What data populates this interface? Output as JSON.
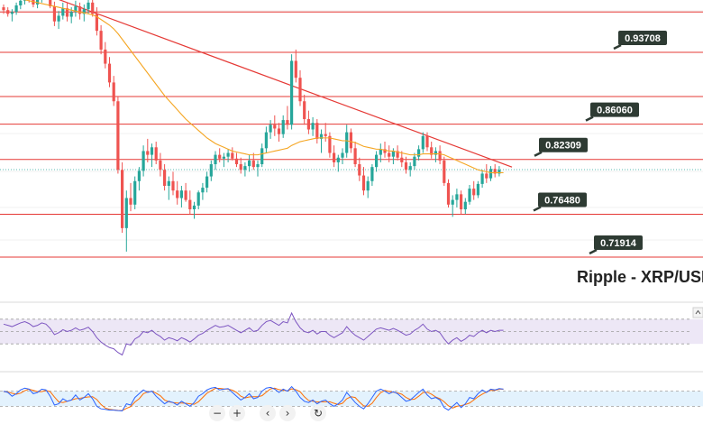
{
  "chart_data": {
    "type": "candlestick",
    "title": "Ripple - XRP/USD",
    "colors": {
      "up": "#26a69a",
      "down": "#ef5350",
      "level_line": "#e53935",
      "trend_line": "#e53935",
      "ma_line": "#f5a623",
      "rsi_line": "#7e57c2",
      "rsi_band": "#ede7f6",
      "stoch_k": "#2962ff",
      "stoch_d": "#ff6d00",
      "stoch_band": "#e3f2fd",
      "label_bg": "#2e3b33",
      "label_text": "#ffffff"
    },
    "levels": [
      {
        "value": 0.93708,
        "label": "0.93708"
      },
      {
        "value": 0.8606,
        "label": "0.86060"
      },
      {
        "value": 0.82309,
        "label": "0.82309"
      },
      {
        "value": 0.7648,
        "label": "0.76480"
      },
      {
        "value": 0.71914,
        "label": "0.71914"
      }
    ],
    "unlabeled_levels": [
      0.98,
      0.89
    ],
    "trendline": {
      "from": {
        "bar": 9,
        "price": 1.0
      },
      "to": {
        "bar": 120,
        "price": 0.815
      }
    },
    "ohlc": [
      [
        0.985,
        0.988,
        0.978,
        0.982
      ],
      [
        0.982,
        0.985,
        0.975,
        0.978
      ],
      [
        0.978,
        0.983,
        0.97,
        0.98
      ],
      [
        0.98,
        0.99,
        0.977,
        0.987
      ],
      [
        0.987,
        0.995,
        0.983,
        0.992
      ],
      [
        0.992,
        1.0,
        0.988,
        0.997
      ],
      [
        0.997,
        1.002,
        0.99,
        0.994
      ],
      [
        0.994,
        0.999,
        0.985,
        0.988
      ],
      [
        0.988,
        0.996,
        0.984,
        0.993
      ],
      [
        0.993,
        1.0,
        0.99,
        0.998
      ],
      [
        0.998,
        1.004,
        0.993,
        0.997
      ],
      [
        0.997,
        1.001,
        0.984,
        0.986
      ],
      [
        0.986,
        0.991,
        0.965,
        0.97
      ],
      [
        0.97,
        0.981,
        0.962,
        0.976
      ],
      [
        0.976,
        0.99,
        0.972,
        0.984
      ],
      [
        0.984,
        0.99,
        0.97,
        0.975
      ],
      [
        0.975,
        0.985,
        0.968,
        0.98
      ],
      [
        0.98,
        0.992,
        0.975,
        0.986
      ],
      [
        0.986,
        0.99,
        0.972,
        0.978
      ],
      [
        0.978,
        0.988,
        0.97,
        0.983
      ],
      [
        0.983,
        0.994,
        0.978,
        0.99
      ],
      [
        0.99,
        0.993,
        0.975,
        0.978
      ],
      [
        0.978,
        0.985,
        0.955,
        0.96
      ],
      [
        0.96,
        0.966,
        0.935,
        0.94
      ],
      [
        0.94,
        0.948,
        0.92,
        0.925
      ],
      [
        0.925,
        0.932,
        0.9,
        0.905
      ],
      [
        0.905,
        0.912,
        0.88,
        0.885
      ],
      [
        0.885,
        0.89,
        0.808,
        0.812
      ],
      [
        0.812,
        0.82,
        0.745,
        0.75
      ],
      [
        0.75,
        0.79,
        0.725,
        0.782
      ],
      [
        0.782,
        0.798,
        0.768,
        0.775
      ],
      [
        0.775,
        0.805,
        0.77,
        0.8
      ],
      [
        0.8,
        0.815,
        0.79,
        0.811
      ],
      [
        0.811,
        0.838,
        0.805,
        0.832
      ],
      [
        0.832,
        0.845,
        0.82,
        0.828
      ],
      [
        0.828,
        0.84,
        0.815,
        0.836
      ],
      [
        0.836,
        0.842,
        0.818,
        0.822
      ],
      [
        0.822,
        0.83,
        0.805,
        0.812
      ],
      [
        0.812,
        0.818,
        0.79,
        0.795
      ],
      [
        0.795,
        0.805,
        0.78,
        0.8
      ],
      [
        0.8,
        0.81,
        0.785,
        0.79
      ],
      [
        0.79,
        0.8,
        0.775,
        0.782
      ],
      [
        0.782,
        0.795,
        0.772,
        0.79
      ],
      [
        0.79,
        0.798,
        0.778,
        0.78
      ],
      [
        0.78,
        0.79,
        0.765,
        0.77
      ],
      [
        0.77,
        0.778,
        0.76,
        0.774
      ],
      [
        0.774,
        0.79,
        0.77,
        0.788
      ],
      [
        0.788,
        0.798,
        0.78,
        0.793
      ],
      [
        0.793,
        0.81,
        0.788,
        0.805
      ],
      [
        0.805,
        0.822,
        0.8,
        0.818
      ],
      [
        0.818,
        0.832,
        0.812,
        0.828
      ],
      [
        0.828,
        0.835,
        0.82,
        0.824
      ],
      [
        0.824,
        0.83,
        0.815,
        0.826
      ],
      [
        0.826,
        0.834,
        0.82,
        0.83
      ],
      [
        0.83,
        0.836,
        0.822,
        0.824
      ],
      [
        0.824,
        0.83,
        0.815,
        0.818
      ],
      [
        0.818,
        0.825,
        0.808,
        0.812
      ],
      [
        0.812,
        0.82,
        0.805,
        0.816
      ],
      [
        0.816,
        0.828,
        0.81,
        0.822
      ],
      [
        0.822,
        0.83,
        0.812,
        0.815
      ],
      [
        0.815,
        0.822,
        0.805,
        0.818
      ],
      [
        0.818,
        0.84,
        0.815,
        0.835
      ],
      [
        0.835,
        0.858,
        0.83,
        0.852
      ],
      [
        0.852,
        0.865,
        0.845,
        0.86
      ],
      [
        0.86,
        0.87,
        0.848,
        0.856
      ],
      [
        0.856,
        0.862,
        0.842,
        0.85
      ],
      [
        0.85,
        0.87,
        0.846,
        0.865
      ],
      [
        0.865,
        0.88,
        0.855,
        0.86
      ],
      [
        0.86,
        0.935,
        0.855,
        0.928
      ],
      [
        0.928,
        0.94,
        0.905,
        0.91
      ],
      [
        0.91,
        0.918,
        0.88,
        0.885
      ],
      [
        0.885,
        0.892,
        0.86,
        0.866
      ],
      [
        0.866,
        0.875,
        0.85,
        0.855
      ],
      [
        0.855,
        0.868,
        0.848,
        0.862
      ],
      [
        0.862,
        0.866,
        0.84,
        0.845
      ],
      [
        0.845,
        0.855,
        0.83,
        0.85
      ],
      [
        0.85,
        0.862,
        0.842,
        0.848
      ],
      [
        0.848,
        0.852,
        0.825,
        0.83
      ],
      [
        0.83,
        0.838,
        0.815,
        0.82
      ],
      [
        0.82,
        0.828,
        0.81,
        0.825
      ],
      [
        0.825,
        0.835,
        0.818,
        0.83
      ],
      [
        0.83,
        0.86,
        0.825,
        0.852
      ],
      [
        0.852,
        0.856,
        0.83,
        0.835
      ],
      [
        0.835,
        0.842,
        0.815,
        0.818
      ],
      [
        0.818,
        0.825,
        0.8,
        0.806
      ],
      [
        0.806,
        0.815,
        0.785,
        0.79
      ],
      [
        0.79,
        0.805,
        0.782,
        0.8
      ],
      [
        0.8,
        0.818,
        0.795,
        0.815
      ],
      [
        0.815,
        0.832,
        0.81,
        0.828
      ],
      [
        0.828,
        0.84,
        0.82,
        0.834
      ],
      [
        0.834,
        0.842,
        0.825,
        0.83
      ],
      [
        0.83,
        0.838,
        0.82,
        0.826
      ],
      [
        0.826,
        0.835,
        0.818,
        0.832
      ],
      [
        0.832,
        0.838,
        0.822,
        0.825
      ],
      [
        0.825,
        0.832,
        0.815,
        0.82
      ],
      [
        0.82,
        0.826,
        0.808,
        0.812
      ],
      [
        0.812,
        0.82,
        0.805,
        0.816
      ],
      [
        0.816,
        0.83,
        0.812,
        0.826
      ],
      [
        0.826,
        0.838,
        0.822,
        0.834
      ],
      [
        0.834,
        0.852,
        0.83,
        0.848
      ],
      [
        0.848,
        0.852,
        0.832,
        0.836
      ],
      [
        0.836,
        0.842,
        0.824,
        0.828
      ],
      [
        0.828,
        0.836,
        0.82,
        0.832
      ],
      [
        0.832,
        0.838,
        0.818,
        0.822
      ],
      [
        0.822,
        0.826,
        0.795,
        0.798
      ],
      [
        0.798,
        0.802,
        0.772,
        0.775
      ],
      [
        0.775,
        0.785,
        0.762,
        0.78
      ],
      [
        0.78,
        0.792,
        0.772,
        0.786
      ],
      [
        0.786,
        0.79,
        0.765,
        0.77
      ],
      [
        0.77,
        0.782,
        0.765,
        0.778
      ],
      [
        0.778,
        0.796,
        0.775,
        0.792
      ],
      [
        0.792,
        0.8,
        0.78,
        0.785
      ],
      [
        0.785,
        0.8,
        0.782,
        0.797
      ],
      [
        0.797,
        0.812,
        0.793,
        0.808
      ],
      [
        0.808,
        0.818,
        0.798,
        0.803
      ],
      [
        0.803,
        0.816,
        0.8,
        0.813
      ],
      [
        0.813,
        0.818,
        0.804,
        0.808
      ],
      [
        0.808,
        0.816,
        0.805,
        0.812
      ]
    ],
    "sma": [
      0.998,
      0.997,
      0.996,
      0.995,
      0.994,
      0.993,
      0.992,
      0.991,
      0.99,
      0.989,
      0.988,
      0.987,
      0.986,
      0.985,
      0.984,
      0.983,
      0.982,
      0.981,
      0.98,
      0.979,
      0.978,
      0.977,
      0.975,
      0.972,
      0.969,
      0.966,
      0.962,
      0.957,
      0.951,
      0.945,
      0.939,
      0.933,
      0.927,
      0.921,
      0.915,
      0.909,
      0.903,
      0.897,
      0.891,
      0.886,
      0.881,
      0.876,
      0.871,
      0.866,
      0.862,
      0.858,
      0.854,
      0.85,
      0.846,
      0.843,
      0.84,
      0.838,
      0.836,
      0.834,
      0.832,
      0.831,
      0.83,
      0.829,
      0.828,
      0.828,
      0.828,
      0.829,
      0.83,
      0.831,
      0.832,
      0.833,
      0.834,
      0.835,
      0.838,
      0.84,
      0.842,
      0.843,
      0.844,
      0.845,
      0.846,
      0.846,
      0.846,
      0.846,
      0.845,
      0.844,
      0.843,
      0.843,
      0.842,
      0.841,
      0.839,
      0.837,
      0.836,
      0.835,
      0.834,
      0.834,
      0.833,
      0.832,
      0.832,
      0.831,
      0.83,
      0.829,
      0.828,
      0.828,
      0.828,
      0.829,
      0.829,
      0.829,
      0.829,
      0.829,
      0.828,
      0.826,
      0.824,
      0.822,
      0.82,
      0.818,
      0.816,
      0.814,
      0.812,
      0.811,
      0.81,
      0.809,
      0.809,
      0.809,
      0.809
    ],
    "rsi": [
      62,
      60,
      58,
      61,
      64,
      66,
      63,
      58,
      60,
      64,
      62,
      55,
      45,
      48,
      53,
      50,
      52,
      56,
      52,
      54,
      57,
      50,
      40,
      33,
      28,
      24,
      22,
      16,
      12,
      30,
      28,
      38,
      42,
      50,
      48,
      52,
      46,
      42,
      36,
      40,
      38,
      35,
      40,
      37,
      33,
      38,
      44,
      47,
      52,
      56,
      60,
      57,
      58,
      60,
      56,
      52,
      48,
      52,
      56,
      50,
      52,
      60,
      66,
      68,
      64,
      60,
      66,
      64,
      80,
      66,
      56,
      50,
      48,
      52,
      46,
      50,
      50,
      44,
      40,
      44,
      48,
      58,
      50,
      44,
      40,
      36,
      42,
      48,
      54,
      56,
      54,
      52,
      55,
      52,
      48,
      44,
      46,
      52,
      56,
      62,
      54,
      50,
      52,
      48,
      38,
      30,
      36,
      40,
      34,
      38,
      44,
      42,
      48,
      52,
      48,
      52,
      50,
      52,
      52
    ],
    "stoch_k": [
      80,
      75,
      60,
      70,
      85,
      92,
      88,
      70,
      75,
      88,
      85,
      60,
      25,
      30,
      50,
      40,
      45,
      65,
      45,
      55,
      70,
      50,
      20,
      10,
      8,
      5,
      5,
      3,
      2,
      30,
      25,
      55,
      70,
      85,
      75,
      80,
      60,
      45,
      30,
      40,
      35,
      25,
      40,
      30,
      20,
      35,
      60,
      70,
      85,
      92,
      95,
      85,
      88,
      90,
      75,
      60,
      45,
      55,
      70,
      50,
      55,
      80,
      92,
      95,
      88,
      75,
      88,
      80,
      98,
      80,
      55,
      40,
      35,
      45,
      30,
      40,
      45,
      30,
      20,
      30,
      45,
      75,
      55,
      35,
      20,
      10,
      30,
      55,
      80,
      88,
      80,
      70,
      78,
      70,
      55,
      40,
      45,
      60,
      75,
      88,
      65,
      50,
      55,
      45,
      15,
      5,
      20,
      35,
      15,
      30,
      55,
      50,
      70,
      85,
      75,
      88,
      85,
      90,
      88
    ],
    "stoch_d": [
      78,
      77,
      72,
      68,
      72,
      82,
      88,
      83,
      78,
      78,
      83,
      78,
      57,
      38,
      35,
      40,
      45,
      50,
      52,
      55,
      57,
      58,
      47,
      27,
      13,
      8,
      6,
      4,
      3,
      12,
      19,
      37,
      50,
      70,
      77,
      80,
      72,
      62,
      45,
      38,
      35,
      33,
      33,
      32,
      30,
      28,
      38,
      55,
      72,
      82,
      91,
      91,
      89,
      88,
      84,
      75,
      60,
      53,
      57,
      58,
      58,
      62,
      76,
      89,
      92,
      86,
      84,
      81,
      89,
      86,
      78,
      58,
      43,
      40,
      37,
      38,
      38,
      38,
      32,
      27,
      32,
      50,
      58,
      55,
      37,
      22,
      20,
      32,
      55,
      74,
      83,
      79,
      76,
      73,
      68,
      55,
      47,
      48,
      60,
      74,
      76,
      68,
      57,
      50,
      38,
      22,
      13,
      20,
      23,
      27,
      33,
      45,
      58,
      68,
      77,
      83,
      83,
      88,
      88
    ]
  }
}
